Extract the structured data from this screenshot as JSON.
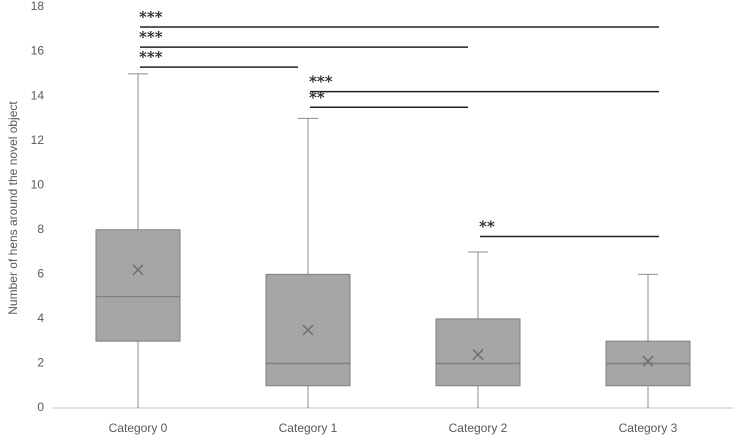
{
  "chart_data": {
    "type": "box",
    "ylabel": "Number of hens around the novel object",
    "categories": [
      "Category 0",
      "Category 1",
      "Category 2",
      "Category 3"
    ],
    "stats": [
      {
        "min": 0,
        "q1": 3,
        "median": 5,
        "q3": 8,
        "max": 15,
        "mean": 6.2
      },
      {
        "min": 0,
        "q1": 1,
        "median": 2,
        "q3": 6,
        "max": 13,
        "mean": 3.5
      },
      {
        "min": 0,
        "q1": 1,
        "median": 2,
        "q3": 4,
        "max": 7,
        "mean": 2.4
      },
      {
        "min": 0,
        "q1": 1,
        "median": 2,
        "q3": 3,
        "max": 6,
        "mean": 2.1
      }
    ],
    "color": "#a6a6a6",
    "ylim": [
      0,
      18
    ],
    "yticks": [
      0,
      2,
      4,
      6,
      8,
      10,
      12,
      14,
      16,
      18
    ],
    "annotations": [
      {
        "label": "***",
        "from": 0,
        "to": 3,
        "y": 17.1
      },
      {
        "label": "***",
        "from": 0,
        "to": 2,
        "y": 16.2
      },
      {
        "label": "***",
        "from": 0,
        "to": 1,
        "y": 15.3
      },
      {
        "label": "***",
        "from": 1,
        "to": 3,
        "y": 14.2
      },
      {
        "label": "**",
        "from": 1,
        "to": 2,
        "y": 13.5
      },
      {
        "label": "**",
        "from": 2,
        "to": 3,
        "y": 7.7
      }
    ]
  }
}
